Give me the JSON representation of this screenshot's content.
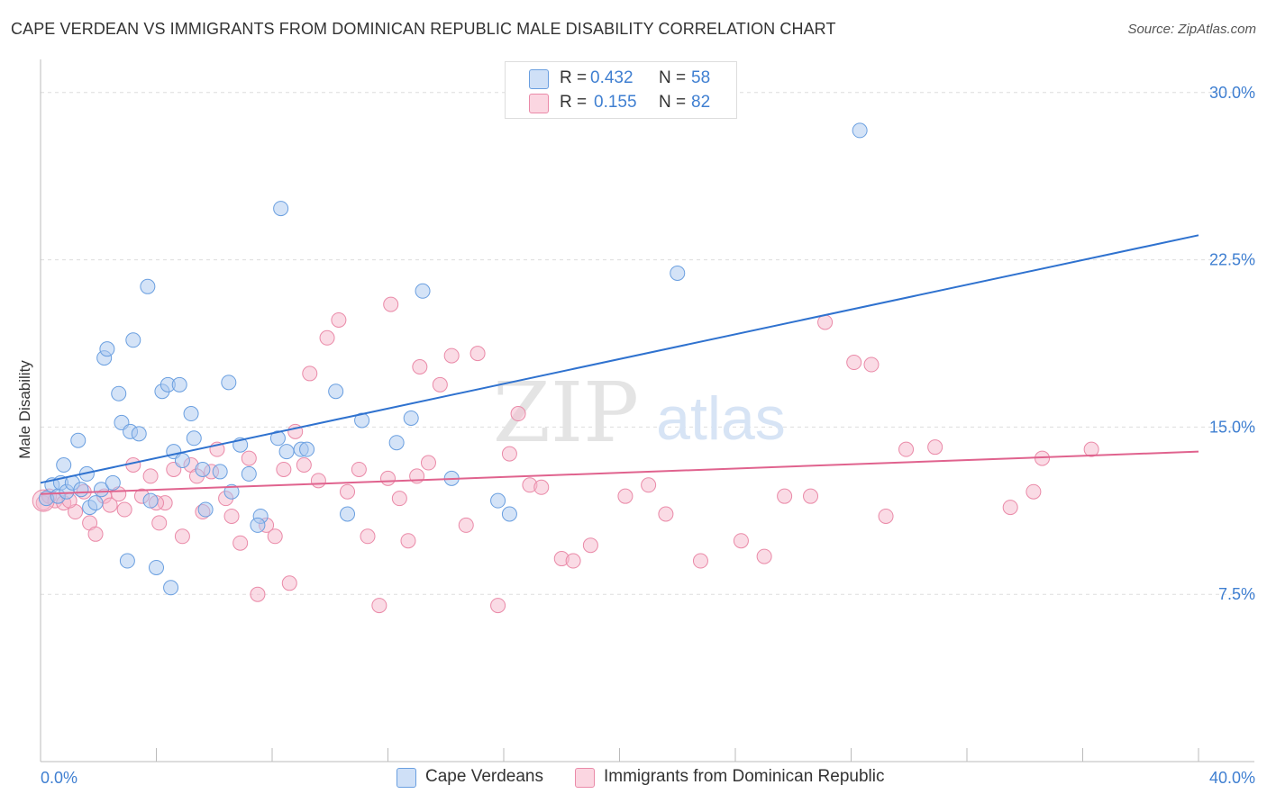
{
  "title": "CAPE VERDEAN VS IMMIGRANTS FROM DOMINICAN REPUBLIC MALE DISABILITY CORRELATION CHART",
  "source": "Source: ZipAtlas.com",
  "watermark": {
    "zip": "ZIP",
    "atlas": "atlas"
  },
  "legend": {
    "r_label": "R =",
    "n_label": "N =",
    "rows": [
      {
        "r": "0.432",
        "n": "58",
        "color": "#a9c8f0"
      },
      {
        "r": "0.155",
        "n": "82",
        "color": "#f5b8cb"
      }
    ]
  },
  "colors": {
    "blue_fill": "#a9c8f0",
    "blue_stroke": "#6a9fe0",
    "blue_line": "#2f72cf",
    "pink_fill": "#f5b8cb",
    "pink_stroke": "#ea8aa8",
    "pink_line": "#e0638e",
    "tick_text": "#3f7fd1"
  },
  "chart_data": {
    "type": "scatter",
    "title": "CAPE VERDEAN VS IMMIGRANTS FROM DOMINICAN REPUBLIC MALE DISABILITY CORRELATION CHART",
    "xlabel": "",
    "ylabel": "Male Disability",
    "xlim": [
      0,
      40
    ],
    "ylim": [
      0,
      31
    ],
    "x_tick_labels": [
      "0.0%",
      "40.0%"
    ],
    "y_ticks": [
      7.5,
      15.0,
      22.5,
      30.0
    ],
    "y_tick_labels": [
      "7.5%",
      "15.0%",
      "22.5%",
      "30.0%"
    ],
    "grid": true,
    "series": [
      {
        "name": "Cape Verdeans",
        "r": 0.432,
        "n": 58,
        "trend": {
          "x": [
            0,
            40
          ],
          "y": [
            12.5,
            23.6
          ]
        },
        "points": [
          [
            0.2,
            11.8
          ],
          [
            0.4,
            12.4
          ],
          [
            0.6,
            11.9
          ],
          [
            0.7,
            12.5
          ],
          [
            0.8,
            13.3
          ],
          [
            0.9,
            12.1
          ],
          [
            1.1,
            12.5
          ],
          [
            1.3,
            14.4
          ],
          [
            1.4,
            12.2
          ],
          [
            1.6,
            12.9
          ],
          [
            1.7,
            11.4
          ],
          [
            1.9,
            11.6
          ],
          [
            2.1,
            12.2
          ],
          [
            2.2,
            18.1
          ],
          [
            2.3,
            18.5
          ],
          [
            2.5,
            12.5
          ],
          [
            2.7,
            16.5
          ],
          [
            2.8,
            15.2
          ],
          [
            3.1,
            14.8
          ],
          [
            3.2,
            18.9
          ],
          [
            3.4,
            14.7
          ],
          [
            3.7,
            21.3
          ],
          [
            3.8,
            11.7
          ],
          [
            4.2,
            16.6
          ],
          [
            4.4,
            16.9
          ],
          [
            4.6,
            13.9
          ],
          [
            4.8,
            16.9
          ],
          [
            4.9,
            13.5
          ],
          [
            5.2,
            15.6
          ],
          [
            5.3,
            14.5
          ],
          [
            5.6,
            13.1
          ],
          [
            5.7,
            11.3
          ],
          [
            6.5,
            17.0
          ],
          [
            6.6,
            12.1
          ],
          [
            6.9,
            14.2
          ],
          [
            7.2,
            12.9
          ],
          [
            7.6,
            11.0
          ],
          [
            8.2,
            14.5
          ],
          [
            8.3,
            24.8
          ],
          [
            8.5,
            13.9
          ],
          [
            9.0,
            14.0
          ],
          [
            10.2,
            16.6
          ],
          [
            10.6,
            11.1
          ],
          [
            11.1,
            15.3
          ],
          [
            12.3,
            14.3
          ],
          [
            12.8,
            15.4
          ],
          [
            13.2,
            21.1
          ],
          [
            14.2,
            12.7
          ],
          [
            15.8,
            11.7
          ],
          [
            16.2,
            11.1
          ],
          [
            22.0,
            21.9
          ],
          [
            28.3,
            28.3
          ],
          [
            3.0,
            9.0
          ],
          [
            4.0,
            8.7
          ],
          [
            4.5,
            7.8
          ],
          [
            7.5,
            10.6
          ],
          [
            9.2,
            14.0
          ],
          [
            6.2,
            13.0
          ]
        ]
      },
      {
        "name": "Immigrants from Dominican Republic",
        "r": 0.155,
        "n": 82,
        "trend": {
          "x": [
            0,
            40
          ],
          "y": [
            12.0,
            13.9
          ]
        },
        "points": [
          [
            0.1,
            11.6
          ],
          [
            0.3,
            11.9
          ],
          [
            0.5,
            11.7
          ],
          [
            0.8,
            11.6
          ],
          [
            1.2,
            11.2
          ],
          [
            1.5,
            12.1
          ],
          [
            1.7,
            10.7
          ],
          [
            1.9,
            10.2
          ],
          [
            2.2,
            11.9
          ],
          [
            2.4,
            11.5
          ],
          [
            2.7,
            12.0
          ],
          [
            2.9,
            11.3
          ],
          [
            3.2,
            13.3
          ],
          [
            3.5,
            11.9
          ],
          [
            3.8,
            12.8
          ],
          [
            4.1,
            10.7
          ],
          [
            4.3,
            11.6
          ],
          [
            4.6,
            13.1
          ],
          [
            4.9,
            10.1
          ],
          [
            5.2,
            13.3
          ],
          [
            5.4,
            12.8
          ],
          [
            5.6,
            11.2
          ],
          [
            5.9,
            13.0
          ],
          [
            6.1,
            14.0
          ],
          [
            6.4,
            11.8
          ],
          [
            6.6,
            11.0
          ],
          [
            6.9,
            9.8
          ],
          [
            7.2,
            13.6
          ],
          [
            7.5,
            7.5
          ],
          [
            7.8,
            10.6
          ],
          [
            8.1,
            10.1
          ],
          [
            8.4,
            13.1
          ],
          [
            8.8,
            14.8
          ],
          [
            9.1,
            13.3
          ],
          [
            9.3,
            17.4
          ],
          [
            9.6,
            12.6
          ],
          [
            9.9,
            19.0
          ],
          [
            10.3,
            19.8
          ],
          [
            10.6,
            12.1
          ],
          [
            11.0,
            13.1
          ],
          [
            11.3,
            10.1
          ],
          [
            11.7,
            7.0
          ],
          [
            12.1,
            20.5
          ],
          [
            12.4,
            11.8
          ],
          [
            12.7,
            9.9
          ],
          [
            13.1,
            17.7
          ],
          [
            13.4,
            13.4
          ],
          [
            13.8,
            16.9
          ],
          [
            14.2,
            18.2
          ],
          [
            14.7,
            10.6
          ],
          [
            15.1,
            18.3
          ],
          [
            15.8,
            7.0
          ],
          [
            16.2,
            13.8
          ],
          [
            16.5,
            15.6
          ],
          [
            16.9,
            12.4
          ],
          [
            17.3,
            12.3
          ],
          [
            18.0,
            9.1
          ],
          [
            18.4,
            9.0
          ],
          [
            19.0,
            9.7
          ],
          [
            20.2,
            11.9
          ],
          [
            21.0,
            12.4
          ],
          [
            21.6,
            11.1
          ],
          [
            22.8,
            9.0
          ],
          [
            24.2,
            9.9
          ],
          [
            25.0,
            9.2
          ],
          [
            25.7,
            11.9
          ],
          [
            26.6,
            11.9
          ],
          [
            27.1,
            19.7
          ],
          [
            28.1,
            17.9
          ],
          [
            28.7,
            17.8
          ],
          [
            29.2,
            11.0
          ],
          [
            29.9,
            14.0
          ],
          [
            30.9,
            14.1
          ],
          [
            33.5,
            11.4
          ],
          [
            34.3,
            12.1
          ],
          [
            34.6,
            13.6
          ],
          [
            36.3,
            14.0
          ],
          [
            4.0,
            11.6
          ],
          [
            8.6,
            8.0
          ],
          [
            12.0,
            12.7
          ],
          [
            13.0,
            12.8
          ],
          [
            1.0,
            11.7
          ]
        ]
      }
    ]
  }
}
